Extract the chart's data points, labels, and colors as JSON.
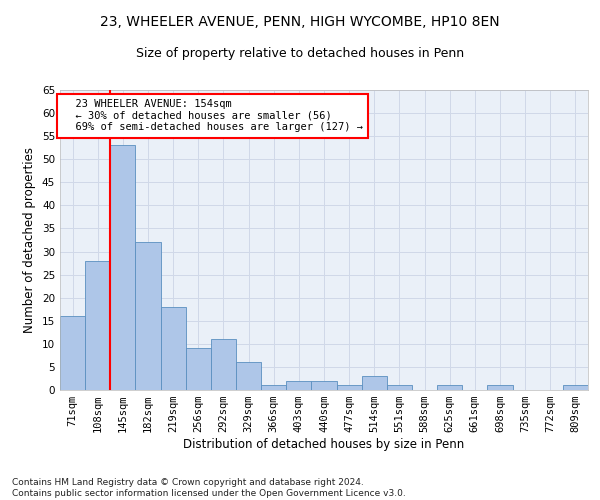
{
  "title1": "23, WHEELER AVENUE, PENN, HIGH WYCOMBE, HP10 8EN",
  "title2": "Size of property relative to detached houses in Penn",
  "xlabel": "Distribution of detached houses by size in Penn",
  "ylabel": "Number of detached properties",
  "bin_labels": [
    "71sqm",
    "108sqm",
    "145sqm",
    "182sqm",
    "219sqm",
    "256sqm",
    "292sqm",
    "329sqm",
    "366sqm",
    "403sqm",
    "440sqm",
    "477sqm",
    "514sqm",
    "551sqm",
    "588sqm",
    "625sqm",
    "661sqm",
    "698sqm",
    "735sqm",
    "772sqm",
    "809sqm"
  ],
  "bar_heights": [
    16,
    28,
    53,
    32,
    18,
    9,
    11,
    6,
    1,
    2,
    2,
    1,
    3,
    1,
    0,
    1,
    0,
    1,
    0,
    0,
    1
  ],
  "bar_color": "#aec6e8",
  "bar_edge_color": "#5a8fc0",
  "red_line_index": 2,
  "annotation_text": "  23 WHEELER AVENUE: 154sqm\n  ← 30% of detached houses are smaller (56)\n  69% of semi-detached houses are larger (127) →",
  "annotation_box_color": "white",
  "annotation_box_edge_color": "red",
  "ylim": [
    0,
    65
  ],
  "yticks": [
    0,
    5,
    10,
    15,
    20,
    25,
    30,
    35,
    40,
    45,
    50,
    55,
    60,
    65
  ],
  "grid_color": "#d0d8e8",
  "bg_color": "#eaf0f8",
  "footer_text": "Contains HM Land Registry data © Crown copyright and database right 2024.\nContains public sector information licensed under the Open Government Licence v3.0.",
  "title1_fontsize": 10,
  "title2_fontsize": 9,
  "xlabel_fontsize": 8.5,
  "ylabel_fontsize": 8.5,
  "tick_fontsize": 7.5,
  "annotation_fontsize": 7.5,
  "footer_fontsize": 6.5
}
